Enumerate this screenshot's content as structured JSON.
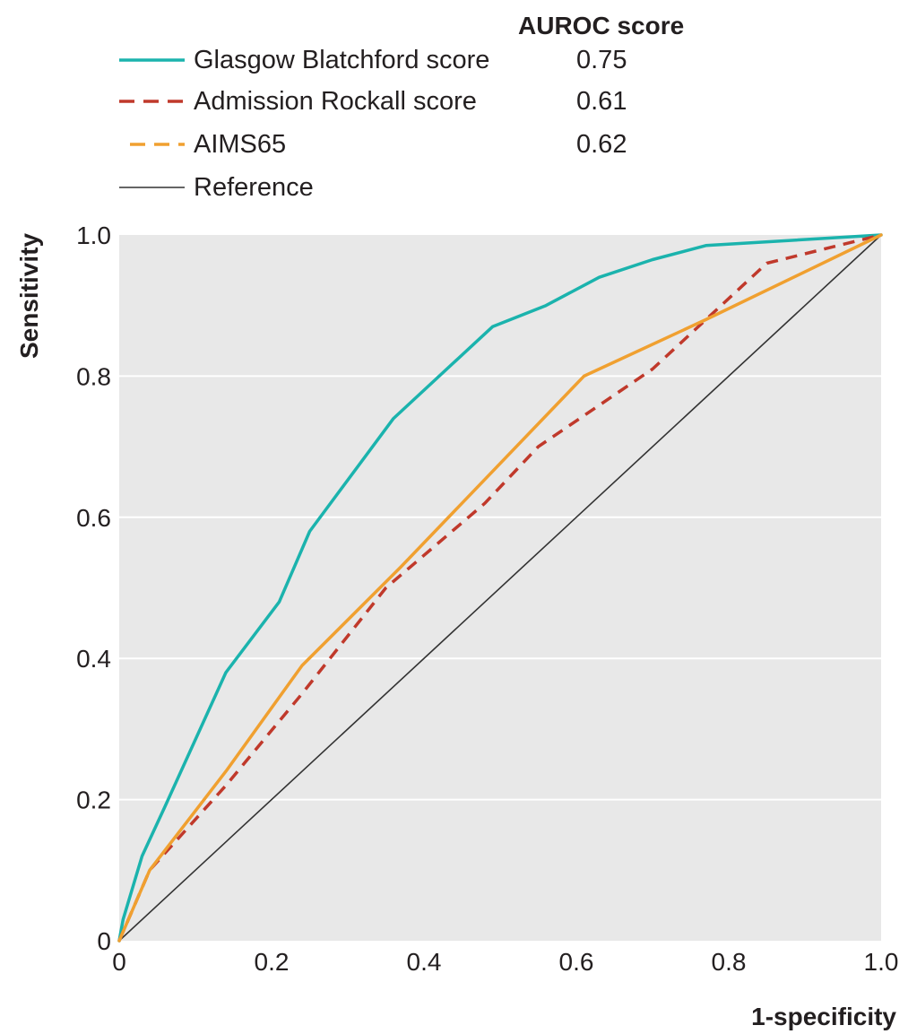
{
  "chart_data": {
    "type": "line",
    "xlabel": "1-specificity",
    "ylabel": "Sensitivity",
    "xlim": [
      0,
      1
    ],
    "ylim": [
      0,
      1
    ],
    "x_ticks": [
      "0",
      "0.2",
      "0.4",
      "0.6",
      "0.8",
      "1.0"
    ],
    "y_ticks": [
      "0",
      "0.2",
      "0.4",
      "0.6",
      "0.8",
      "1.0"
    ],
    "grid": "horizontal",
    "legend_placement": "top",
    "legend_header": "AUROC score",
    "series": [
      {
        "name": "Glasgow Blatchford score",
        "auroc": "0.75",
        "color": "#1bb3ad",
        "dash": "solid",
        "points": [
          [
            0,
            0
          ],
          [
            0.005,
            0.03
          ],
          [
            0.03,
            0.12
          ],
          [
            0.06,
            0.19
          ],
          [
            0.14,
            0.38
          ],
          [
            0.21,
            0.48
          ],
          [
            0.25,
            0.58
          ],
          [
            0.36,
            0.74
          ],
          [
            0.49,
            0.87
          ],
          [
            0.56,
            0.9
          ],
          [
            0.63,
            0.94
          ],
          [
            0.7,
            0.965
          ],
          [
            0.77,
            0.985
          ],
          [
            1.0,
            1.0
          ]
        ]
      },
      {
        "name": "Admission Rockall score",
        "auroc": "0.61",
        "color": "#c0392b",
        "dash": "dashed",
        "points": [
          [
            0,
            0
          ],
          [
            0.04,
            0.1
          ],
          [
            0.14,
            0.22
          ],
          [
            0.24,
            0.35
          ],
          [
            0.35,
            0.5
          ],
          [
            0.48,
            0.62
          ],
          [
            0.55,
            0.7
          ],
          [
            0.7,
            0.81
          ],
          [
            0.79,
            0.9
          ],
          [
            0.85,
            0.96
          ],
          [
            1.0,
            1.0
          ]
        ]
      },
      {
        "name": "AIMS65",
        "auroc": "0.62",
        "color": "#f0a030",
        "dash": "dashed",
        "points": [
          [
            0,
            0
          ],
          [
            0.04,
            0.1
          ],
          [
            0.14,
            0.24
          ],
          [
            0.24,
            0.39
          ],
          [
            0.37,
            0.53
          ],
          [
            0.61,
            0.8
          ],
          [
            0.77,
            0.88
          ],
          [
            1.0,
            1.0
          ]
        ]
      },
      {
        "name": "Reference",
        "color": "#333333",
        "dash": "solid",
        "points": [
          [
            0,
            0
          ],
          [
            1,
            1
          ]
        ]
      }
    ]
  }
}
